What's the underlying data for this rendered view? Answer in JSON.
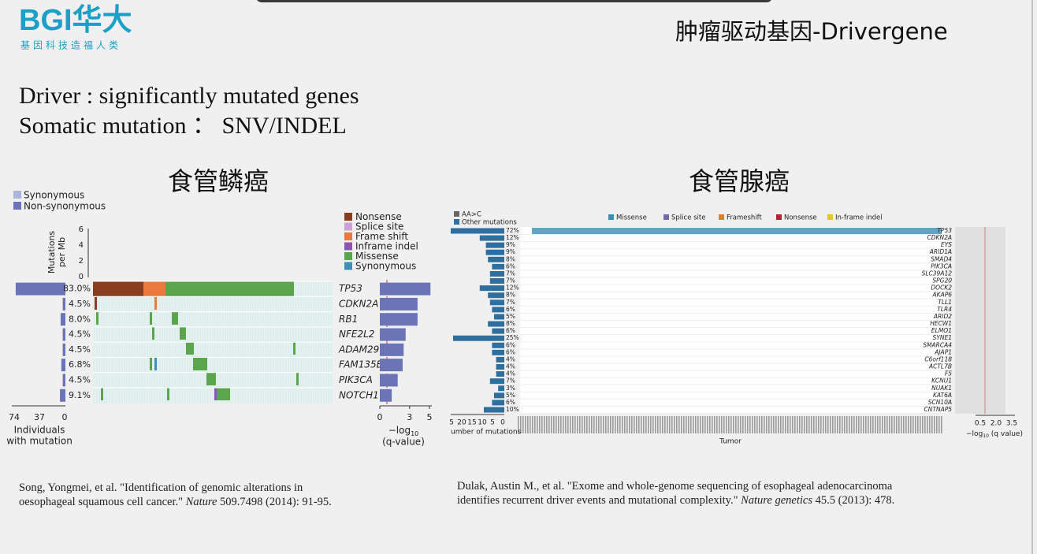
{
  "header": {
    "logo": "BGI华大",
    "logo_tagline": "基因科技造福人类",
    "title": "肿瘤驱动基因-Drivergene"
  },
  "intro": [
    "Driver : significantly mutated genes",
    "Somatic mutation ： SNV/INDEL"
  ],
  "left_figure": {
    "heading": "食管鳞癌",
    "burden_legend": [
      {
        "name": "Synonymous",
        "color": "#a9b6da"
      },
      {
        "name": "Non-synonymous",
        "color": "#6a74b6"
      }
    ],
    "burden_axis_label": [
      "Mutations",
      "per Mb"
    ],
    "burden_ticks": [
      "0",
      "2",
      "4",
      "6"
    ],
    "type_legend": [
      {
        "name": "Nonsense",
        "color": "#8a3d1f"
      },
      {
        "name": "Splice site",
        "color": "#c9a3d6"
      },
      {
        "name": "Frame shift",
        "color": "#ea7a3c"
      },
      {
        "name": "Inframe indel",
        "color": "#8b55b3"
      },
      {
        "name": "Missense",
        "color": "#5ba64c"
      },
      {
        "name": "Synonymous",
        "color": "#3f8fb6"
      }
    ],
    "rows": [
      {
        "gene": "TP53",
        "pct": 83.0,
        "pct_label": "83.0%",
        "q": 5.1
      },
      {
        "gene": "CDKN2A",
        "pct": 4.5,
        "pct_label": "4.5%",
        "q": 3.8
      },
      {
        "gene": "RB1",
        "pct": 8.0,
        "pct_label": "8.0%",
        "q": 3.8
      },
      {
        "gene": "NFE2L2",
        "pct": 4.5,
        "pct_label": "4.5%",
        "q": 2.6
      },
      {
        "gene": "ADAM29",
        "pct": 4.5,
        "pct_label": "4.5%",
        "q": 2.4
      },
      {
        "gene": "FAM135B",
        "pct": 6.8,
        "pct_label": "6.8%",
        "q": 2.3
      },
      {
        "gene": "PIK3CA",
        "pct": 4.5,
        "pct_label": "4.5%",
        "q": 1.8
      },
      {
        "gene": "NOTCH1",
        "pct": 9.1,
        "pct_label": "9.1%",
        "q": 1.2
      }
    ],
    "individuals_ticks": [
      "74",
      "37",
      "0"
    ],
    "individuals_label": [
      "Individuals",
      "with mutation"
    ],
    "q_ticks": [
      0,
      3,
      5
    ],
    "q_label": {
      "prefix": "−log",
      "sub": "10",
      "line2": "(q-value)"
    }
  },
  "right_figure": {
    "heading": "食管腺癌",
    "legend_left": [
      {
        "name": "AA>C",
        "color": "#666666"
      },
      {
        "name": "Other mutations",
        "color": "#2e6f9f"
      }
    ],
    "legend": [
      {
        "name": "Missense",
        "color": "#3a8fb7"
      },
      {
        "name": "Splice site",
        "color": "#7866ad"
      },
      {
        "name": "Frameshift",
        "color": "#d9822b"
      },
      {
        "name": "Nonsense",
        "color": "#b3222f"
      },
      {
        "name": "In-frame indel",
        "color": "#e6c23a"
      }
    ],
    "rows": [
      {
        "gene": "TP53",
        "pct": 72,
        "pct_label": "72%"
      },
      {
        "gene": "CDKN2A",
        "pct": 12,
        "pct_label": "12%"
      },
      {
        "gene": "EYS",
        "pct": 9,
        "pct_label": "9%"
      },
      {
        "gene": "ARID1A",
        "pct": 9,
        "pct_label": "9%"
      },
      {
        "gene": "SMAD4",
        "pct": 8,
        "pct_label": "8%"
      },
      {
        "gene": "PIK3CA",
        "pct": 6,
        "pct_label": "6%"
      },
      {
        "gene": "SLC39A12",
        "pct": 7,
        "pct_label": "7%"
      },
      {
        "gene": "SPG20",
        "pct": 7,
        "pct_label": "7%"
      },
      {
        "gene": "DOCK2",
        "pct": 12,
        "pct_label": "12%"
      },
      {
        "gene": "AKAP6",
        "pct": 8,
        "pct_label": "8%"
      },
      {
        "gene": "TLL1",
        "pct": 7,
        "pct_label": "7%"
      },
      {
        "gene": "TLR4",
        "pct": 6,
        "pct_label": "6%"
      },
      {
        "gene": "ARID2",
        "pct": 5,
        "pct_label": "5%"
      },
      {
        "gene": "HECW1",
        "pct": 8,
        "pct_label": "8%"
      },
      {
        "gene": "ELMO1",
        "pct": 6,
        "pct_label": "6%"
      },
      {
        "gene": "SYNE1",
        "pct": 25,
        "pct_label": "25%"
      },
      {
        "gene": "SMARCA4",
        "pct": 6,
        "pct_label": "6%"
      },
      {
        "gene": "AJAP1",
        "pct": 6,
        "pct_label": "6%"
      },
      {
        "gene": "C6orf118",
        "pct": 4,
        "pct_label": "4%"
      },
      {
        "gene": "ACTL7B",
        "pct": 4,
        "pct_label": "4%"
      },
      {
        "gene": "F5",
        "pct": 4,
        "pct_label": "4%"
      },
      {
        "gene": "KCNU1",
        "pct": 7,
        "pct_label": "7%"
      },
      {
        "gene": "NUAK1",
        "pct": 3,
        "pct_label": "3%"
      },
      {
        "gene": "KAT6A",
        "pct": 5,
        "pct_label": "5%"
      },
      {
        "gene": "SCN10A",
        "pct": 6,
        "pct_label": "6%"
      },
      {
        "gene": "CNTNAP5",
        "pct": 10,
        "pct_label": "10%"
      }
    ],
    "count_ticks": [
      "5",
      "20",
      "15",
      "10",
      "5",
      "0"
    ],
    "count_label": "umber of mutations",
    "x_label": "Tumor",
    "q_ticks": [
      "0.5",
      "2.0",
      "3.5"
    ],
    "q_label": {
      "prefix": "−log",
      "sub": "10",
      "suffix": " (q value)"
    }
  },
  "citations": [
    [
      [
        {
          "text": "Song, Yongmei, et al. \"Identification of genomic alterations in"
        }
      ],
      [
        {
          "text": "oesophageal squamous cell cancer.\" "
        },
        {
          "text": "Nature",
          "italic": true
        },
        {
          "text": " 509.7498 (2014): 91-95."
        }
      ]
    ],
    [
      [
        {
          "text": "Dulak, Austin M., et al. \"Exome and whole-genome sequencing of esophageal adenocarcinoma"
        }
      ],
      [
        {
          "text": "identifies recurrent driver events and mutational complexity.\" "
        },
        {
          "text": "Nature genetics",
          "italic": true
        },
        {
          "text": " 45.5 (2013): 478."
        }
      ]
    ]
  ]
}
